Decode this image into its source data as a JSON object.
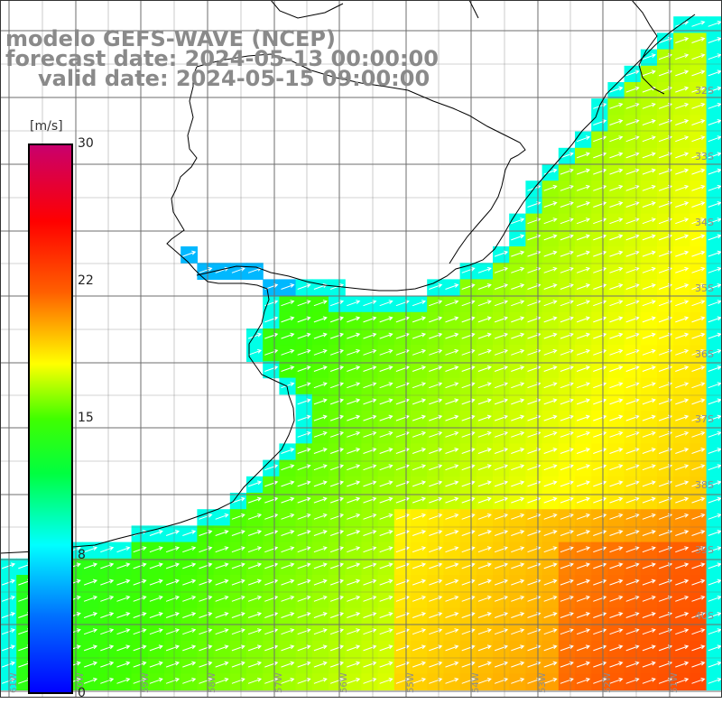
{
  "title": {
    "line1": "modelo GEFS-WAVE (NCEP)",
    "line2": "forecast date: 2024-05-13 00:00:00",
    "line3": "valid date: 2024-05-15 09:00:00"
  },
  "colorbar": {
    "unit": "[m/s]",
    "ticks": [
      "30",
      "22",
      "15",
      "8",
      "0"
    ],
    "tick_values": [
      30,
      22,
      15,
      8,
      0
    ],
    "range": [
      0,
      30
    ],
    "colors": [
      "#0000ff",
      "#00a0ff",
      "#00ffff",
      "#00ff00",
      "#ffff00",
      "#ff8000",
      "#ff0000",
      "#c8006e"
    ]
  },
  "lat_labels": [
    "32S",
    "33S",
    "34S",
    "35S",
    "36S",
    "37S",
    "38S",
    "39S",
    "40S"
  ],
  "lon_labels": [
    "61W",
    "60W",
    "59W",
    "58W",
    "57W",
    "56W",
    "55W",
    "54W",
    "53W",
    "52W",
    "51W"
  ],
  "colors": {
    "land": "#ffffff",
    "grid": "#6e6e6e",
    "coast": "#000000",
    "arrows": "#ffffff"
  }
}
